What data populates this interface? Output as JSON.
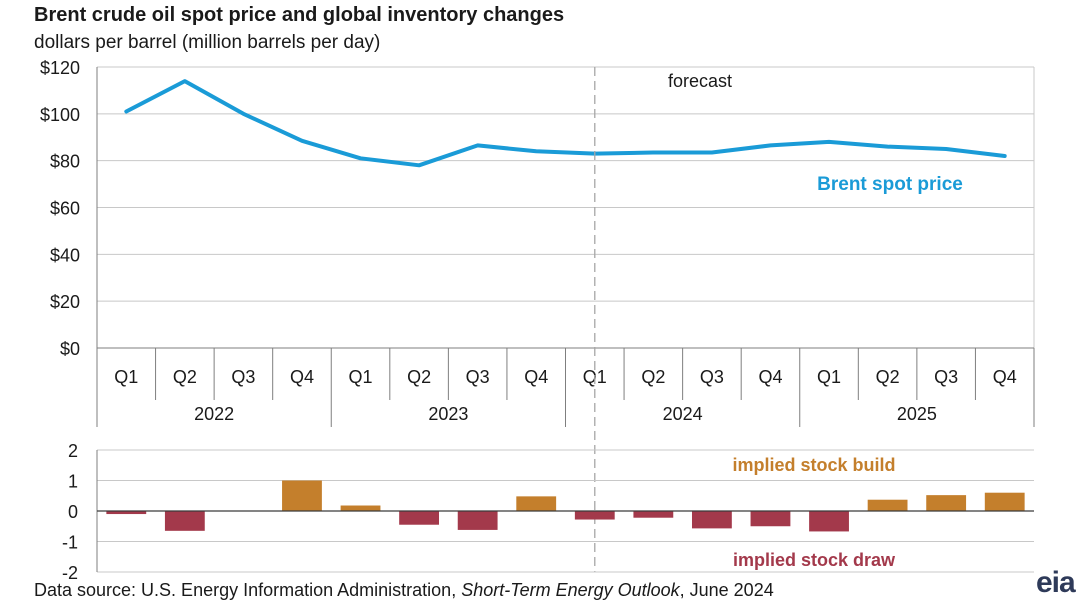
{
  "header": {
    "title": "Brent crude oil spot price and global inventory changes",
    "subtitle": "dollars per barrel (million barrels per day)"
  },
  "footer": {
    "source_prefix": "Data source: U.S. Energy Information Administration, ",
    "source_italic": "Short-Term Energy Outlook",
    "source_suffix": ", June 2024",
    "logo": "eia"
  },
  "colors": {
    "price_line": "#1a9bd7",
    "stock_build": "#c47f2c",
    "stock_draw": "#a3394b",
    "grid": "#c8c8c8",
    "axis": "#7f7f7f"
  },
  "chart_data": [
    {
      "type": "line",
      "x": [
        "Q1",
        "Q2",
        "Q3",
        "Q4",
        "Q1",
        "Q2",
        "Q3",
        "Q4",
        "Q1",
        "Q2",
        "Q3",
        "Q4",
        "Q1",
        "Q2",
        "Q3",
        "Q4"
      ],
      "years": [
        "2022",
        "2023",
        "2024",
        "2025"
      ],
      "series": [
        {
          "name": "Brent spot price",
          "values": [
            101,
            114,
            100,
            88.5,
            81,
            78,
            86.5,
            84,
            83,
            83.5,
            83.5,
            86.5,
            88,
            86,
            85,
            82
          ]
        }
      ],
      "ylim": [
        0,
        120
      ],
      "yticks": [
        "$0",
        "$20",
        "$40",
        "$60",
        "$80",
        "$100",
        "$120"
      ],
      "ytick_values": [
        0,
        20,
        40,
        60,
        80,
        100,
        120
      ],
      "grid": true,
      "forecast_label": "forecast",
      "forecast_start_index": 9
    },
    {
      "type": "bar",
      "series": [
        {
          "values": [
            -0.1,
            -0.65,
            0,
            1.0,
            0.18,
            -0.45,
            -0.62,
            0.48,
            -0.28,
            -0.22,
            -0.57,
            -0.5,
            -0.67,
            0.37,
            0.52,
            0.6
          ]
        }
      ],
      "ylim": [
        -2,
        2
      ],
      "yticks": [
        "-2",
        "-1",
        "0",
        "1",
        "2"
      ],
      "ytick_values": [
        -2,
        -1,
        0,
        1,
        2
      ],
      "annotations": {
        "build": "implied stock  build",
        "draw": "implied stock draw"
      }
    }
  ]
}
